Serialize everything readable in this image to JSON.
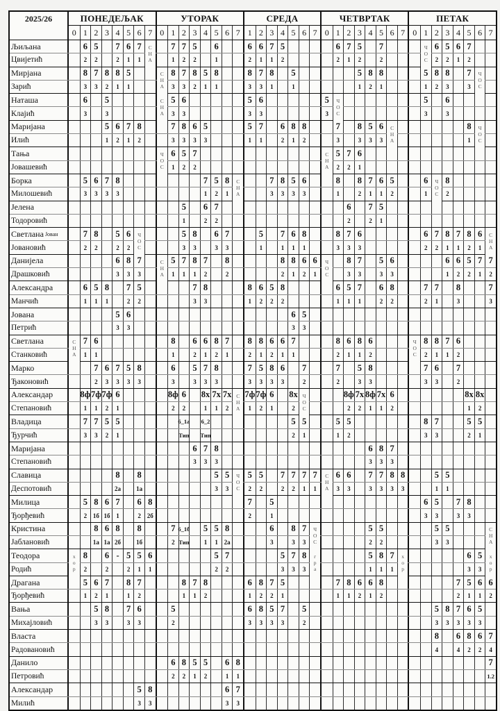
{
  "header": {
    "year": "2025/26",
    "days": [
      {
        "name": "ПОНЕДЕЉАК",
        "periods": [
          "0",
          "1",
          "2",
          "3",
          "4",
          "5",
          "6",
          "7"
        ]
      },
      {
        "name": "УТОРАК",
        "periods": [
          "0",
          "1",
          "2",
          "3",
          "4",
          "5",
          "6",
          "7"
        ]
      },
      {
        "name": "СРЕДА",
        "periods": [
          "1",
          "2",
          "3",
          "4",
          "5",
          "6",
          "7"
        ]
      },
      {
        "name": "ЧЕТВРТАК",
        "periods": [
          "0",
          "1",
          "2",
          "3",
          "4",
          "5",
          "6",
          "7"
        ]
      },
      {
        "name": "ПЕТАК",
        "periods": [
          "0",
          "1",
          "2",
          "3",
          "4",
          "5",
          "6",
          "7"
        ]
      }
    ]
  },
  "vertical_labels": [
    "ЧОС",
    "СНА",
    "хор",
    "гра"
  ],
  "teachers": [
    {
      "first_name": "Љиљана",
      "last_name": "Цвијетић",
      "classes": [
        ". 6 5 . 7 6 7 СНА",
        ". 7 7 5 . 6 . .",
        "6 6 7 5 . . .",
        ". 6 7 5 . 7 . .",
        ". ЧОС 6 5 6 7 . ."
      ],
      "sections": [
        ". 2 2 . 2 1 1 .",
        ". 1 2 2 . 1 . .",
        "2 1 1 2 . . .",
        ". 2 1 2 . 2 . .",
        ". . 2 2 1 2 . ."
      ]
    },
    {
      "first_name": "Мирјана",
      "last_name": "Зарић",
      "classes": [
        ". 8 7 8 8 5 . .",
        "СНА 8 7 8 5 8 . .",
        "8 7 8 . 5 . .",
        ". . . 5 8 8 . .",
        ". 5 8 8 . 7 ЧОС ."
      ],
      "sections": [
        ". 3 3 2 1 1 . .",
        ". 3 3 2 1 1 . .",
        "3 3 1 . 1 . .",
        ". . . 1 2 1 . .",
        ". 1 2 3 . 3 . ."
      ]
    },
    {
      "first_name": "Наташа",
      "last_name": "Клајић",
      "classes": [
        ". 6 . 5 . . . .",
        "СНА 5 6 . . . . .",
        "5 6 . . . . .",
        "5 ЧОС . . . . . .",
        ". 5 . 6 . . . ."
      ],
      "sections": [
        ". 3 . 3 . . . .",
        ". 3 3 . . . . .",
        "3 3 . . . . .",
        "3 . . . . . . .",
        ". 3 . 3 . . . ."
      ]
    },
    {
      "first_name": "Маријана",
      "last_name": "Илић",
      "classes": [
        ". . . 5 6 7 8 .",
        ". 7 8 6 5 . . .",
        "5 7 . 6 8 8 .",
        ". 7 . 8 5 6 СНА .",
        ". . . . . 8 ЧОС ."
      ],
      "sections": [
        ". . . 1 2 1 2 .",
        ". 3 3 3 3 . . .",
        "1 1 . 2 1 2 .",
        ". 3 . 3 3 3 . .",
        ". . . . . 1 . ."
      ]
    },
    {
      "first_name": "Тања",
      "last_name": "Јовашевић",
      "classes": [
        ". . . . . . . .",
        "ЧОС 6 5 7 . . . .",
        ". . . . . . .",
        "СНА 5 7 6 . . . .",
        ". . . . . . . ."
      ],
      "sections": [
        ". . . . . . . .",
        ". 1 2 2 . . . .",
        ". . . . . . .",
        ". 2 2 1 . . . .",
        ". . . . . . . ."
      ]
    },
    {
      "first_name": "Борка",
      "last_name": "Милошевић",
      "classes": [
        ". 5 6 7 8 . . .",
        ". . . . 7 5 8 СНА",
        ". . 7 8 5 6 .",
        ". 8 . 8 7 6 5 .",
        ". 6 ЧОС 8 . . . ."
      ],
      "sections": [
        ". 3 3 3 3 . . .",
        ". . . . 1 2 1 .",
        ". . 3 3 3 3 .",
        ". 1 . 2 1 1 2 .",
        ". 1 . 2 . . . ."
      ]
    },
    {
      "first_name": "Јелена",
      "last_name": "Тодоровић",
      "classes": [
        ". . . . . . . .",
        ". . 5 . 6 7 . .",
        ". . . . . . .",
        ". . 6 . 7 5 . .",
        ". . . . . . . ."
      ],
      "sections": [
        ". . . . . . . .",
        ". . 1 . 2 2 . .",
        ". . . . . . .",
        ". . 2 . 2 1 . .",
        ". . . . . . . ."
      ]
    },
    {
      "first_name": "Светлана",
      "first_name_note": "Јован",
      "last_name": "Јовановић",
      "classes": [
        ". 7 8 . 5 6 ЧОС .",
        ". . 5 8 . 6 7 .",
        ". 5 . 7 6 8 .",
        ". 8 7 6 . . . .",
        ". 6 7 8 7 8 6 СНА"
      ],
      "sections": [
        ". 2 2 . 2 2 . .",
        ". . 3 3 . 3 3 .",
        ". 1 . 1 1 1 .",
        ". 3 3 3 . . . .",
        ". 2 2 1 1 2 1 ."
      ]
    },
    {
      "first_name": "Данијела",
      "last_name": "Драшковић",
      "classes": [
        ". . . . 6 8 7 .",
        "СНА 5 7 8 7 . 8 .",
        ". . . 8 8 6 6",
        "ЧОС . 8 7 . 5 6 .",
        ". . . 6 6 5 7 7"
      ],
      "sections": [
        ". . . . 3 3 3 .",
        ". 1 1 1 2 . 2 .",
        ". . . 2 1 2 1",
        ". . 3 3 . 3 3 .",
        ". . . 1 2 2 1 2"
      ]
    },
    {
      "first_name": "Александра",
      "last_name": "Манчић",
      "classes": [
        ". 6 5 8 . 7 5 .",
        ". . . 7 8 . . .",
        "8 6 5 8 . . .",
        ". 6 5 7 . 6 8 .",
        ". 7 7 . 8 . . 7"
      ],
      "sections": [
        ". 1 1 1 . 2 2 .",
        ". . . 3 3 . . .",
        "1 2 2 2 . . .",
        ". 1 1 1 . 2 2 .",
        ". 2 1 . 3 . . 3"
      ]
    },
    {
      "first_name": "Јована",
      "last_name": "Петрић",
      "classes": [
        ". . . . 5 6 . .",
        ". . . . . . . .",
        ". . . . 6 5 .",
        ". . . . . . . .",
        ". . . . . . . ."
      ],
      "sections": [
        ". . . . 3 3 . .",
        ". . . . . . . .",
        ". . . . 3 3 .",
        ". . . . . . . .",
        ". . . . . . . ."
      ]
    },
    {
      "first_name": "Светлана",
      "last_name": "Станковић",
      "classes": [
        "СНА 7 6 . . . . .",
        ". 8 . 6 6 8 7 .",
        "8 8 6 6 7 . .",
        ". 8 6 8 6 . . .",
        "ЧОС 8 8 7 6 . . ."
      ],
      "sections": [
        ". 1 1 . . . . .",
        ". 1 . 2 1 2 1 .",
        "2 1 2 1 1 . .",
        ". 2 1 1 2 . . .",
        ". 2 1 1 2 . . ."
      ]
    },
    {
      "first_name": "Марко",
      "last_name": "Ђаконовић",
      "classes": [
        ". . 7 6 7 5 8 .",
        ". 6 . 5 7 8 . .",
        "7 5 8 6 . 7 .",
        ". 7 . 5 8 . . .",
        ". 7 6 . 7 . . ."
      ],
      "sections": [
        ". . 2 3 3 3 3 .",
        ". 3 . 3 3 3 . .",
        "3 3 3 3 . 2 .",
        ". 2 . 3 3 . . .",
        ". 3 3 . 2 . . ."
      ]
    },
    {
      "first_name": "Александар",
      "last_name": "Степановић",
      "classes": [
        ". 8ф 7ф 7ф 6 . . .",
        ". 8ф 6 . 8х 7х 7х СНА",
        "7ф 7ф 6 . 8х ЧОС .",
        ". . 8ф 7х 8ф 7х 6 .",
        ". . . . . 8х 8х ."
      ],
      "sections": [
        ". 1 1 2 1 . . .",
        ". 2 2 . 1 1 2 .",
        "1 2 1 . 2 . .",
        ". . 2 2 1 1 2 .",
        ". . . . . 1 2 ."
      ]
    },
    {
      "first_name": "Владица",
      "last_name": "Ђурчић",
      "classes": [
        ". 7 7 5 5 . . .",
        ". . 6_1а . 6_2 . . .",
        ". . . . 5 5 .",
        ". 5 5 . . . . .",
        ". 8 7 . . 5 5 ."
      ],
      "sections": [
        ". 3 3 2 1 . . .",
        ". . Тип . Тип . . .",
        ". . . . 2 1 .",
        ". 1 2 . . . . .",
        ". 3 3 . . 2 1 ."
      ]
    },
    {
      "first_name": "Маријана",
      "last_name": "Степановић",
      "classes": [
        ". . . . . . . .",
        ". . . 6 7 8 . .",
        ". . . . . . .",
        ". . . . 6 8 7 .",
        ". . . . . . . ."
      ],
      "sections": [
        ". . . . . . . .",
        ". . . 3 3 3 . .",
        ". . . . . . .",
        ". . . . 3 3 3 .",
        ". . . . . . . ."
      ]
    },
    {
      "first_name": "Славица",
      "last_name": "Деспотовић",
      "classes": [
        ". . . . 8 . 8 .",
        ". . . . . 5 5 ЧОС",
        "5 5 . 7 7 7 7",
        "СНА 6 6 . 7 7 8 8",
        ". . 5 5 . . . ."
      ],
      "sections": [
        ". . . . 2а . 1а .",
        ". . . . . 3 3 .",
        "2 2 . 2 2 1 1",
        ". 3 3 . 3 3 3 3",
        ". . 1 1 . . . ."
      ]
    },
    {
      "first_name": "Милица",
      "last_name": "Ђорђевић",
      "classes": [
        ". 5 8 6 7 . 6 8",
        ". . . . . . . .",
        "7 . 5 . . . .",
        ". . . . . . . .",
        ". 6 5 . 7 8 . ."
      ],
      "sections": [
        ". 2 1б 1б 1 . 2 2б",
        ". . . . . . . .",
        "2 . 1 . . . .",
        ". . . . . . . .",
        ". 3 3 . 3 3 . ."
      ]
    },
    {
      "first_name": "Кристина",
      "last_name": "Јаблановић",
      "classes": [
        ". . 8 6 8 . 8 .",
        ". 7 6_1б . 5 5 8 .",
        ". . 6 . 8 7 ЧОС",
        ". . . . 5 5 . .",
        ". . 5 5 . . . СНА"
      ],
      "sections": [
        ". . 1а 1а 2б . 1б .",
        ". 2 Тип . 1 1 2а .",
        ". . 3 . 3 3 .",
        ". . . . 2 2 . .",
        ". . 3 3 . . . ."
      ]
    },
    {
      "first_name": "Теодора",
      "last_name": "Родић",
      "classes": [
        "хор 8 . 6 - 5 5 6",
        ". . . . . 5 7 .",
        ". . . 5 7 8 гра",
        ". . . . 5 8 7 хор",
        ". . . . . 6 5 хор"
      ],
      "sections": [
        ". 2 . 2 . 2 1 1",
        ". . . . . 2 2 .",
        ". . . 3 3 3 .",
        ". . . . 1 1 1 .",
        ". . . . . 3 3 ."
      ]
    },
    {
      "first_name": "Драгана",
      "last_name": "Ђорђевић",
      "classes": [
        ". 5 6 7 . 8 7 .",
        ". . 8 7 8 . . .",
        "6 8 7 5 . . .",
        ". 7 8 6 6 8 . .",
        ". . . . 7 5 6 6"
      ],
      "sections": [
        ". 1 2 1 . 1 2 .",
        ". . 1 1 2 . . .",
        "1 2 2 1 . . .",
        ". 1 1 2 1 2 . .",
        ". . . . 2 1 1 2"
      ]
    },
    {
      "first_name": "Вања",
      "last_name": "Михајловић",
      "classes": [
        ". . 5 8 . 7 6 .",
        ". 5 . . . . . .",
        "6 8 5 7 . 5 .",
        ". . . . . . . .",
        ". . 5 8 7 6 5 ."
      ],
      "sections": [
        ". . 3 3 . 3 3 .",
        ". 2 . . . . . .",
        "3 3 3 3 . 2 .",
        ". . . . . . . .",
        ". . 3 3 3 3 3 ."
      ]
    },
    {
      "first_name": "Власта",
      "last_name": "Радовановић",
      "classes": [
        ". . . . . . . .",
        ". . . . . . . .",
        ". . . . . . .",
        ". . . . . . . .",
        ". . 8 . 6 8 6 7"
      ],
      "sections": [
        ". . . . . . . .",
        ". . . . . . . .",
        ". . . . . . .",
        ". . . . . . . .",
        ". . 4 . 4 2 2 4"
      ]
    },
    {
      "first_name": "Данило",
      "last_name": "Петровић",
      "classes": [
        ". . . . . . . .",
        ". 6 8 5 5 . 6 8",
        ". . . . . . .",
        ". . . . . . . .",
        ". . . . . . . 7"
      ],
      "sections": [
        ". . . . . . . .",
        ". 2 2 1 2 . 1 1",
        ". . . . . . .",
        ". . . . . . . .",
        ". . . . . . . 1.2"
      ]
    },
    {
      "first_name": "Александар",
      "last_name": "Милић",
      "classes": [
        ". . . . . . 5 8",
        ". . . . . . 6 7",
        ". . . . . . .",
        ". . . . . . . .",
        ". . . . . . . ."
      ],
      "sections": [
        ". . . . . . 3 3",
        ". . . . . . 3 3",
        ". . . . . . .",
        ". . . . . . . .",
        ". . . . . . . ."
      ]
    }
  ]
}
